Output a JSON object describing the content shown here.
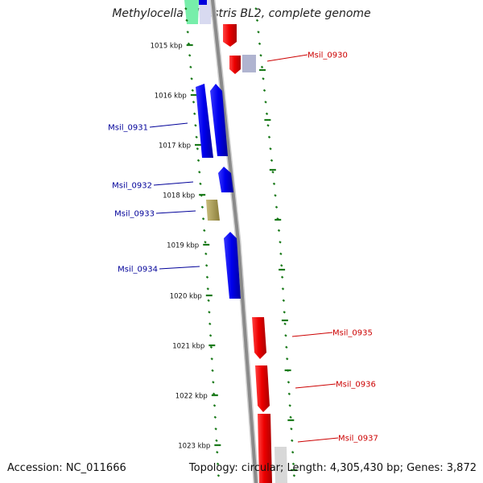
{
  "title": "Methylocella silvestris BL2, complete genome",
  "footer": {
    "accession": "Accession: NC_011666",
    "summary": "Topology: circular; Length: 4,305,430 bp; Genes: 3,872"
  },
  "ticks": [
    "1015 kbp",
    "1016 kbp",
    "1017 kbp",
    "1018 kbp",
    "1019 kbp",
    "1020 kbp",
    "1021 kbp",
    "1022 kbp",
    "1023 kbp"
  ],
  "genes": [
    {
      "name": "Msil_0930",
      "strand": "reverse",
      "color": "#dd0000"
    },
    {
      "name": "Msil_0931",
      "strand": "forward",
      "color": "#0000dd"
    },
    {
      "name": "Msil_0932",
      "strand": "forward",
      "color": "#0000dd"
    },
    {
      "name": "Msil_0933",
      "strand": "forward",
      "color": "#a89a55"
    },
    {
      "name": "Msil_0934",
      "strand": "forward",
      "color": "#0000dd"
    },
    {
      "name": "Msil_0935",
      "strand": "reverse",
      "color": "#dd0000"
    },
    {
      "name": "Msil_0936",
      "strand": "reverse",
      "color": "#dd0000"
    },
    {
      "name": "Msil_0937",
      "strand": "reverse",
      "color": "#dd0000"
    }
  ],
  "colors": {
    "forward_label": "#000099",
    "reverse_label": "#cc0000",
    "backbone": "#8a8a8a",
    "tick_marks": "#1a7a1a"
  }
}
